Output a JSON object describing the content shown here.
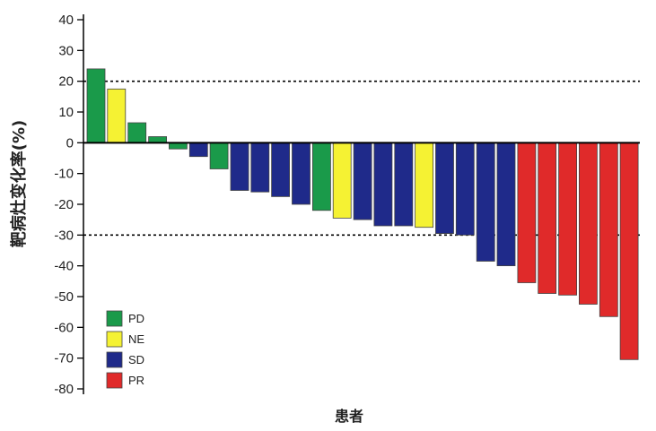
{
  "chart_data": {
    "type": "bar",
    "title": "",
    "xlabel": "患者",
    "ylabel": "靶病灶变化率(%)",
    "ylim": [
      -80,
      40
    ],
    "yticks": [
      40,
      30,
      20,
      10,
      0,
      -10,
      -20,
      -30,
      -40,
      -50,
      -60,
      -70,
      -80
    ],
    "reference_lines": [
      20,
      -30
    ],
    "colors": {
      "PD": "#1a9a4a",
      "NE": "#f5f233",
      "SD": "#1f2a8a",
      "PR": "#e02a2a"
    },
    "legend": [
      {
        "key": "PD",
        "label": "PD"
      },
      {
        "key": "NE",
        "label": "NE"
      },
      {
        "key": "SD",
        "label": "SD"
      },
      {
        "key": "PR",
        "label": "PR"
      }
    ],
    "bars": [
      {
        "value": 24,
        "group": "PD"
      },
      {
        "value": 17.5,
        "group": "NE"
      },
      {
        "value": 6.5,
        "group": "PD"
      },
      {
        "value": 2,
        "group": "PD"
      },
      {
        "value": -2,
        "group": "PD"
      },
      {
        "value": -4.5,
        "group": "SD"
      },
      {
        "value": -8.5,
        "group": "PD"
      },
      {
        "value": -15.5,
        "group": "SD"
      },
      {
        "value": -16,
        "group": "SD"
      },
      {
        "value": -17.5,
        "group": "SD"
      },
      {
        "value": -20,
        "group": "SD"
      },
      {
        "value": -22,
        "group": "PD"
      },
      {
        "value": -24.5,
        "group": "NE"
      },
      {
        "value": -25,
        "group": "SD"
      },
      {
        "value": -27,
        "group": "SD"
      },
      {
        "value": -27,
        "group": "SD"
      },
      {
        "value": -27.5,
        "group": "NE"
      },
      {
        "value": -29.5,
        "group": "SD"
      },
      {
        "value": -30,
        "group": "SD"
      },
      {
        "value": -38.5,
        "group": "SD"
      },
      {
        "value": -40,
        "group": "SD"
      },
      {
        "value": -45.5,
        "group": "PR"
      },
      {
        "value": -49,
        "group": "PR"
      },
      {
        "value": -49.5,
        "group": "PR"
      },
      {
        "value": -52.5,
        "group": "PR"
      },
      {
        "value": -56.5,
        "group": "PR"
      },
      {
        "value": -70.5,
        "group": "PR"
      }
    ]
  }
}
